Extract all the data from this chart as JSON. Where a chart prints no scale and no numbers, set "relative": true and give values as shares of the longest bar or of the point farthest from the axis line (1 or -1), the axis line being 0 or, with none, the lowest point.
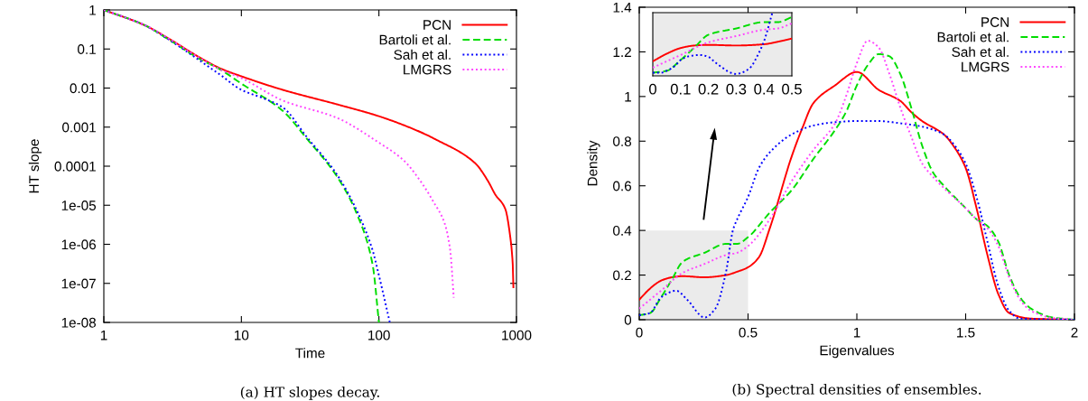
{
  "chart_data": [
    {
      "type": "line",
      "xlabel": "Time",
      "ylabel": "HT slope",
      "log": "xy",
      "xlim": [
        1,
        1000
      ],
      "xticks": [
        1,
        10,
        100,
        1000
      ],
      "ylim": [
        1e-08,
        1
      ],
      "yticks": [
        {
          "value": 1e-08,
          "label": "1e-08"
        },
        {
          "value": 1e-07,
          "label": "1e-07"
        },
        {
          "value": 1e-06,
          "label": "1e-06"
        },
        {
          "value": 1e-05,
          "label": "1e-05"
        },
        {
          "value": 0.0001,
          "label": "0.0001"
        },
        {
          "value": 0.001,
          "label": "0.001"
        },
        {
          "value": 0.01,
          "label": "0.01"
        },
        {
          "value": 0.1,
          "label": "0.1"
        },
        {
          "value": 1,
          "label": "1"
        }
      ],
      "grid": false,
      "legend": "top right",
      "marker": "none",
      "annotations": [
        "(a) HT slopes decay."
      ],
      "series": [
        {
          "name": "PCN",
          "color": "#ff0000",
          "line_style": "solid",
          "x": [
            1,
            2,
            3,
            5,
            7,
            10,
            20,
            50,
            100,
            200,
            254,
            500,
            620,
            700,
            830,
            900,
            940,
            950
          ],
          "values": [
            1,
            0.4,
            0.18,
            0.06,
            0.032,
            0.02,
            0.009,
            0.0038,
            0.0019,
            0.00075,
            0.0005,
            0.00012,
            4.2e-05,
            1.9e-05,
            8e-06,
            1.6e-06,
            3e-07,
            8e-08
          ]
        },
        {
          "name": "Bartoli et al.",
          "color": "#00dd00",
          "line_style": "dashed",
          "x": [
            1,
            2,
            3,
            5,
            7,
            10,
            20,
            30,
            50,
            70,
            90,
            100
          ],
          "values": [
            1,
            0.4,
            0.17,
            0.055,
            0.03,
            0.013,
            0.0026,
            0.0005,
            5.2e-05,
            5.4e-06,
            3e-07,
            1e-08
          ]
        },
        {
          "name": "Sah et al.",
          "color": "#0000ff",
          "line_style": "dotted",
          "x": [
            1,
            2,
            3,
            5,
            7,
            10,
            15,
            20,
            30,
            50,
            70,
            90,
            100,
            120
          ],
          "values": [
            1,
            0.4,
            0.17,
            0.05,
            0.022,
            0.009,
            0.0052,
            0.0032,
            0.00055,
            5.8e-05,
            6.6e-06,
            7e-07,
            1.6e-07,
            1e-08
          ]
        },
        {
          "name": "LMGRS",
          "color": "#ff44ff",
          "line_style": "dotted",
          "x": [
            1,
            2,
            3,
            5,
            7,
            10,
            20,
            50,
            100,
            150,
            200,
            250,
            300,
            330,
            350
          ],
          "values": [
            1,
            0.4,
            0.18,
            0.058,
            0.03,
            0.018,
            0.0048,
            0.0017,
            0.0004,
            0.000145,
            4.2e-05,
            1.2e-05,
            3.5e-06,
            7e-07,
            4.3e-08
          ]
        }
      ]
    },
    {
      "type": "line",
      "xlabel": "Eigenvalues",
      "ylabel": "Density",
      "xlim": [
        0,
        2
      ],
      "xticks": [
        0,
        0.5,
        1,
        1.5,
        2
      ],
      "ylim": [
        0,
        1.4
      ],
      "yticks": [
        0,
        0.2,
        0.4,
        0.6,
        0.8,
        1,
        1.2,
        1.4
      ],
      "grid": false,
      "legend": "top right",
      "marker": "none",
      "annotations": [
        "(b) Spectral densities of ensembles."
      ],
      "series": [
        {
          "name": "PCN",
          "color": "#ff0000",
          "line_style": "solid",
          "x": [
            0,
            0.05,
            0.1,
            0.15,
            0.2,
            0.3,
            0.4,
            0.45,
            0.5,
            0.55,
            0.6,
            0.7,
            0.75,
            0.8,
            0.9,
            1.0,
            1.1,
            1.2,
            1.25,
            1.3,
            1.4,
            1.45,
            1.5,
            1.55,
            1.6,
            1.65,
            1.7,
            1.8,
            2
          ],
          "values": [
            0.09,
            0.14,
            0.175,
            0.19,
            0.195,
            0.19,
            0.2,
            0.215,
            0.235,
            0.28,
            0.41,
            0.73,
            0.86,
            0.97,
            1.05,
            1.11,
            1.03,
            0.98,
            0.93,
            0.89,
            0.83,
            0.77,
            0.68,
            0.5,
            0.29,
            0.115,
            0.03,
            0.005,
            0
          ]
        },
        {
          "name": "Bartoli et al.",
          "color": "#00dd00",
          "line_style": "dashed",
          "x": [
            0,
            0.05,
            0.1,
            0.15,
            0.2,
            0.3,
            0.4,
            0.45,
            0.5,
            0.6,
            0.7,
            0.8,
            0.9,
            0.95,
            1.0,
            1.05,
            1.1,
            1.15,
            1.2,
            1.25,
            1.3,
            1.35,
            1.4,
            1.5,
            1.55,
            1.6,
            1.65,
            1.7,
            1.75,
            1.8,
            1.9,
            2
          ],
          "values": [
            0.02,
            0.03,
            0.1,
            0.18,
            0.26,
            0.3,
            0.34,
            0.34,
            0.37,
            0.48,
            0.58,
            0.72,
            0.85,
            0.93,
            1.05,
            1.14,
            1.19,
            1.18,
            1.1,
            0.95,
            0.78,
            0.66,
            0.6,
            0.5,
            0.45,
            0.42,
            0.35,
            0.2,
            0.1,
            0.05,
            0.01,
            0
          ]
        },
        {
          "name": "Sah et al.",
          "color": "#0000ff",
          "line_style": "dotted",
          "x": [
            0,
            0.05,
            0.1,
            0.17,
            0.22,
            0.3,
            0.35,
            0.4,
            0.43,
            0.45,
            0.5,
            0.55,
            0.6,
            0.7,
            0.8,
            0.9,
            1.0,
            1.1,
            1.2,
            1.3,
            1.4,
            1.45,
            1.5,
            1.55,
            1.6,
            1.65,
            1.7,
            1.75,
            2
          ],
          "values": [
            0.02,
            0.03,
            0.1,
            0.13,
            0.09,
            0.01,
            0.05,
            0.22,
            0.4,
            0.45,
            0.55,
            0.68,
            0.75,
            0.83,
            0.87,
            0.885,
            0.89,
            0.89,
            0.88,
            0.865,
            0.83,
            0.78,
            0.7,
            0.55,
            0.35,
            0.15,
            0.04,
            0.005,
            0
          ]
        },
        {
          "name": "LMGRS",
          "color": "#ff44ff",
          "line_style": "dotted",
          "x": [
            0,
            0.1,
            0.2,
            0.3,
            0.4,
            0.45,
            0.5,
            0.6,
            0.7,
            0.8,
            0.9,
            0.95,
            1.0,
            1.05,
            1.1,
            1.15,
            1.2,
            1.25,
            1.3,
            1.35,
            1.4,
            1.5,
            1.55,
            1.6,
            1.65,
            1.7,
            1.75,
            1.8,
            1.9,
            2
          ],
          "values": [
            0.05,
            0.13,
            0.21,
            0.25,
            0.29,
            0.3,
            0.33,
            0.45,
            0.62,
            0.76,
            0.88,
            1.0,
            1.15,
            1.25,
            1.22,
            1.1,
            0.95,
            0.82,
            0.7,
            0.64,
            0.59,
            0.5,
            0.45,
            0.41,
            0.33,
            0.19,
            0.09,
            0.04,
            0.008,
            0
          ]
        }
      ]
    },
    {
      "type": "line",
      "relative": true,
      "xlim": [
        0,
        0.5
      ],
      "xticks": [
        0,
        0.1,
        0.2,
        0.3,
        0.4,
        0.5
      ],
      "tick_labels": "x",
      "grid": false,
      "marker": "none",
      "series": [
        {
          "color": "#ff0000",
          "line_style": "solid",
          "x": [
            0,
            0.05,
            0.1,
            0.15,
            0.2,
            0.3,
            0.4,
            0.45,
            0.5
          ],
          "values": [
            0.23,
            0.35,
            0.44,
            0.48,
            0.49,
            0.48,
            0.5,
            0.54,
            0.59
          ]
        },
        {
          "color": "#00dd00",
          "line_style": "dashed",
          "x": [
            0,
            0.05,
            0.1,
            0.15,
            0.2,
            0.3,
            0.4,
            0.45,
            0.5
          ],
          "values": [
            0.05,
            0.08,
            0.25,
            0.45,
            0.65,
            0.75,
            0.85,
            0.85,
            0.93
          ]
        },
        {
          "color": "#0000ff",
          "line_style": "dotted",
          "x": [
            0,
            0.03,
            0.05,
            0.08,
            0.1,
            0.13,
            0.17,
            0.2,
            0.22,
            0.25,
            0.28,
            0.3,
            0.32,
            0.35,
            0.38,
            0.4,
            0.43
          ],
          "values": [
            0.05,
            0.05,
            0.08,
            0.16,
            0.25,
            0.31,
            0.33,
            0.3,
            0.23,
            0.13,
            0.05,
            0.03,
            0.05,
            0.13,
            0.35,
            0.55,
            1
          ]
        },
        {
          "color": "#ff44ff",
          "line_style": "dotted",
          "x": [
            0,
            0.1,
            0.2,
            0.3,
            0.4,
            0.45,
            0.5
          ],
          "values": [
            0.13,
            0.33,
            0.53,
            0.63,
            0.73,
            0.75,
            0.83
          ]
        }
      ]
    }
  ]
}
